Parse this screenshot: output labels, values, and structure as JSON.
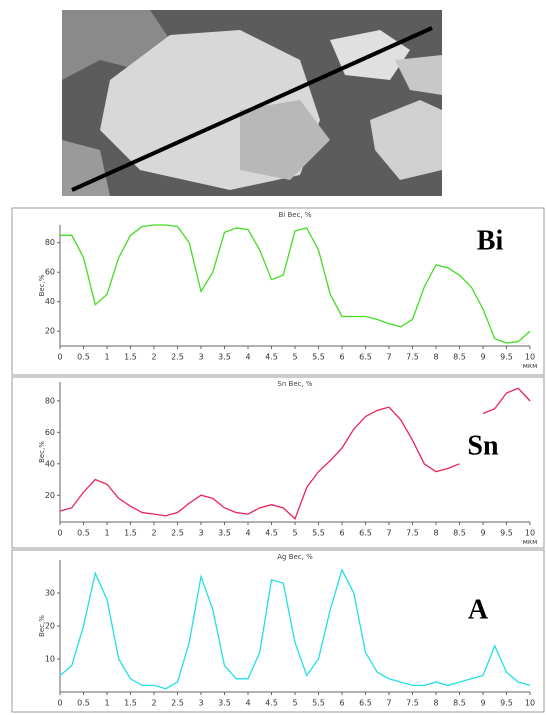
{
  "chart_data": [
    {
      "type": "line",
      "title": "Bi Вес, %",
      "y_label": "Вес,%",
      "x_label": "мкм",
      "label": "Bi",
      "color": "#44dd22",
      "x": [
        0,
        0.25,
        0.5,
        0.75,
        1,
        1.25,
        1.5,
        1.75,
        2,
        2.25,
        2.5,
        2.75,
        3,
        3.25,
        3.5,
        3.75,
        4,
        4.25,
        4.5,
        4.75,
        5,
        5.25,
        5.5,
        5.75,
        6,
        6.25,
        6.5,
        6.75,
        7,
        7.25,
        7.5,
        7.75,
        8,
        8.25,
        8.5,
        8.75,
        9,
        9.25,
        9.5,
        9.75,
        10
      ],
      "values": [
        85,
        85,
        70,
        38,
        45,
        70,
        85,
        91,
        92,
        92,
        91,
        80,
        47,
        60,
        87,
        90,
        89,
        75,
        55,
        58,
        88,
        90,
        75,
        45,
        30,
        30,
        30,
        28,
        25,
        23,
        28,
        50,
        65,
        63,
        58,
        50,
        35,
        15,
        12,
        13,
        20
      ],
      "xlim": [
        0,
        10
      ],
      "ylim": [
        10,
        92
      ],
      "xticks": [
        0,
        0.5,
        1,
        1.5,
        2,
        2.5,
        3,
        3.5,
        4,
        4.5,
        5,
        5.5,
        6,
        6.5,
        7,
        7.5,
        8,
        8.5,
        9,
        9.5,
        10
      ],
      "yticks": [
        20,
        40,
        60,
        80
      ]
    },
    {
      "type": "line",
      "title": "Sn Вес, %",
      "y_label": "Вес,%",
      "x_label": "мкм",
      "label": "Sn",
      "color": "#e8245a",
      "x": [
        0,
        0.25,
        0.5,
        0.75,
        1,
        1.25,
        1.5,
        1.75,
        2,
        2.25,
        2.5,
        2.75,
        3,
        3.25,
        3.5,
        3.75,
        4,
        4.25,
        4.5,
        4.75,
        5,
        5.25,
        5.5,
        5.75,
        6,
        6.25,
        6.5,
        6.75,
        7,
        7.25,
        7.5,
        7.75,
        8,
        8.25,
        8.5,
        8.75,
        9,
        9.25,
        9.5,
        9.75,
        10
      ],
      "values": [
        10,
        12,
        22,
        30,
        27,
        18,
        13,
        9,
        8,
        7,
        9,
        15,
        20,
        18,
        12,
        9,
        8,
        12,
        14,
        12,
        5,
        25,
        35,
        42,
        50,
        62,
        70,
        74,
        76,
        68,
        55,
        40,
        35,
        37,
        40,
        null,
        72,
        75,
        85,
        88,
        80
      ],
      "xlim": [
        0,
        10
      ],
      "ylim": [
        3,
        92
      ],
      "xticks": [
        0,
        0.5,
        1,
        1.5,
        2,
        2.5,
        3,
        3.5,
        4,
        4.5,
        5,
        5.5,
        6,
        6.5,
        7,
        7.5,
        8,
        8.5,
        9,
        9.5,
        10
      ],
      "yticks": [
        20,
        40,
        60,
        80
      ]
    },
    {
      "type": "line",
      "title": "Ag Вес, %",
      "y_label": "Вес,%",
      "label": "A",
      "color": "#22e0e6",
      "x": [
        0,
        0.25,
        0.5,
        0.75,
        1,
        1.25,
        1.5,
        1.75,
        2,
        2.25,
        2.5,
        2.75,
        3,
        3.25,
        3.5,
        3.75,
        4,
        4.25,
        4.5,
        4.75,
        5,
        5.25,
        5.5,
        5.75,
        6,
        6.25,
        6.5,
        6.75,
        7,
        7.25,
        7.5,
        7.75,
        8,
        8.25,
        8.5,
        8.75,
        9,
        9.25,
        9.5,
        9.75,
        10
      ],
      "values": [
        5,
        8,
        20,
        36,
        28,
        10,
        4,
        2,
        2,
        1,
        3,
        15,
        35,
        25,
        8,
        4,
        4,
        12,
        34,
        33,
        15,
        5,
        10,
        25,
        37,
        30,
        12,
        6,
        4,
        3,
        2,
        2,
        3,
        2,
        3,
        4,
        5,
        14,
        6,
        3,
        2
      ],
      "xlim": [
        0,
        10
      ],
      "ylim": [
        0,
        40
      ],
      "xticks": [
        0,
        0.5,
        1,
        1.5,
        2,
        2.5,
        3,
        3.5,
        4,
        4.5,
        5,
        5.5,
        6,
        6.5,
        7,
        7.5,
        8,
        8.5,
        9,
        9.5,
        10
      ],
      "yticks": [
        10,
        20,
        30
      ]
    }
  ]
}
